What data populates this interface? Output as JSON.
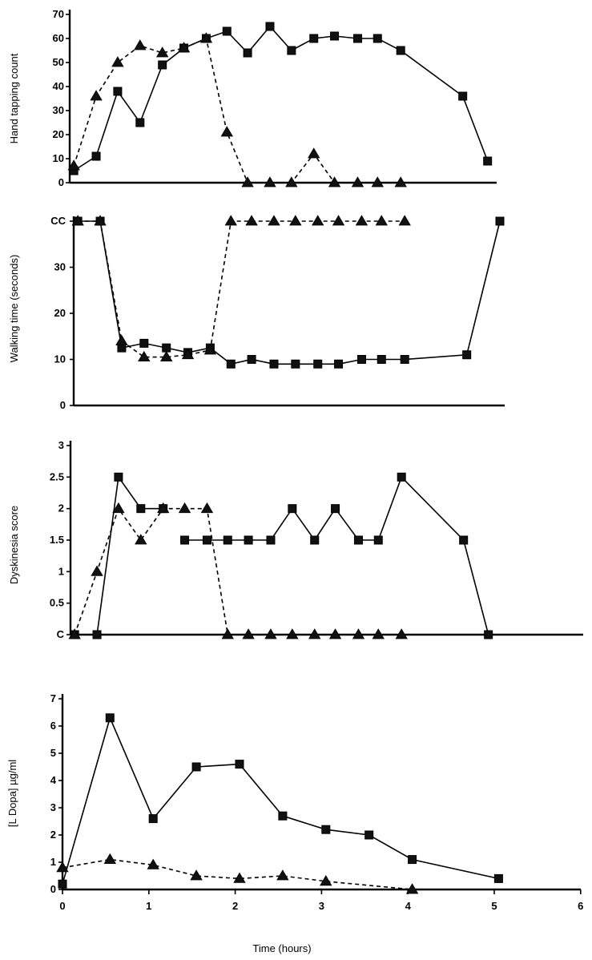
{
  "chart_data": [
    {
      "type": "line",
      "ylabel": "Hand tapping count",
      "ylim": [
        0,
        70
      ],
      "yticks": [
        "0",
        "10",
        "20",
        "30",
        "40",
        "50",
        "60",
        "70"
      ],
      "series": [
        {
          "marker": "square",
          "line": "solid",
          "x": [
            0.05,
            0.32,
            0.58,
            0.85,
            1.12,
            1.38,
            1.65,
            1.9,
            2.15,
            2.42,
            2.68,
            2.95,
            3.2,
            3.48,
            3.72,
            4.0,
            4.75,
            5.05
          ],
          "y": [
            5,
            11,
            38,
            25,
            49,
            56,
            60,
            63,
            54,
            65,
            55,
            60,
            61,
            60,
            60,
            55,
            36,
            9
          ]
        },
        {
          "marker": "triangle",
          "line": "dashed",
          "x": [
            0.05,
            0.32,
            0.58,
            0.85,
            1.12,
            1.38,
            1.65,
            1.9,
            2.15,
            2.42,
            2.68,
            2.95,
            3.2,
            3.48,
            3.72,
            4.0
          ],
          "y": [
            7,
            36,
            50,
            57,
            54,
            56,
            60,
            21,
            0,
            0,
            0,
            12,
            0,
            0,
            0,
            0
          ]
        }
      ]
    },
    {
      "type": "line",
      "ylabel": "Walking time (seconds)",
      "ylim": [
        0,
        40
      ],
      "yticks": [
        "0",
        "10",
        "20",
        "30",
        "CC"
      ],
      "series": [
        {
          "marker": "square",
          "line": "solid",
          "x": [
            0.05,
            0.32,
            0.58,
            0.85,
            1.12,
            1.38,
            1.65,
            1.9,
            2.15,
            2.42,
            2.68,
            2.95,
            3.2,
            3.48,
            3.72,
            4.0,
            4.75,
            5.15
          ],
          "y": [
            40,
            40,
            12.5,
            13.5,
            12.5,
            11.5,
            12.5,
            9,
            10,
            9,
            9,
            9,
            9,
            10,
            10,
            10,
            11,
            40
          ]
        },
        {
          "marker": "triangle",
          "line": "dashed",
          "x": [
            0.05,
            0.32,
            0.58,
            0.85,
            1.12,
            1.38,
            1.65,
            1.9,
            2.15,
            2.42,
            2.68,
            2.95,
            3.2,
            3.48,
            3.72,
            4.0
          ],
          "y": [
            40,
            40,
            14,
            10.5,
            10.5,
            11,
            12,
            40,
            40,
            40,
            40,
            40,
            40,
            40,
            40,
            40
          ]
        }
      ]
    },
    {
      "type": "line",
      "ylabel": "Dyskinesia score",
      "ylim": [
        0,
        3
      ],
      "yticks": [
        "C",
        "0.5",
        "1",
        "1.5",
        "2",
        "2.5",
        "3"
      ],
      "series": [
        {
          "marker": "square",
          "line": "solid",
          "x": [
            0.05,
            0.32,
            0.58,
            0.85,
            1.12,
            1.38,
            1.65,
            1.9,
            2.15,
            2.42,
            2.68,
            2.95,
            3.2,
            3.48,
            3.72,
            4.0,
            4.75,
            5.05
          ],
          "y": [
            0,
            0,
            2.5,
            2,
            2,
            1.5,
            1.5,
            1.5,
            1.5,
            1.5,
            2,
            1.5,
            2,
            1.5,
            1.5,
            2.5,
            1.5,
            0
          ],
          "gap_after_index": 4
        },
        {
          "marker": "triangle",
          "line": "dashed",
          "x": [
            0.05,
            0.32,
            0.58,
            0.85,
            1.12,
            1.38,
            1.65,
            1.9,
            2.15,
            2.42,
            2.68,
            2.95,
            3.2,
            3.48,
            3.72,
            4.0
          ],
          "y": [
            0,
            1,
            2,
            1.5,
            2,
            2,
            2,
            0,
            0,
            0,
            0,
            0,
            0,
            0,
            0,
            0
          ]
        }
      ]
    },
    {
      "type": "line",
      "ylabel": "[L Dopa] µg/ml",
      "xlabel": "Time (hours)",
      "ylim": [
        0,
        7
      ],
      "xlim": [
        0,
        6
      ],
      "yticks": [
        "0",
        "1",
        "2",
        "3",
        "4",
        "5",
        "6",
        "7"
      ],
      "xticks": [
        "0",
        "1",
        "2",
        "3",
        "4",
        "5",
        "6"
      ],
      "series": [
        {
          "marker": "square",
          "line": "solid",
          "x": [
            0,
            0.55,
            1.05,
            1.55,
            2.05,
            2.55,
            3.05,
            3.55,
            4.05,
            5.05
          ],
          "y": [
            0.2,
            6.3,
            2.6,
            4.5,
            4.6,
            2.7,
            2.2,
            2.0,
            1.1,
            0.4
          ]
        },
        {
          "marker": "triangle",
          "line": "dashed",
          "x": [
            0,
            0.55,
            1.05,
            1.55,
            2.05,
            2.55,
            3.05,
            4.05
          ],
          "y": [
            0.8,
            1.1,
            0.9,
            0.5,
            0.4,
            0.5,
            0.3,
            0
          ]
        }
      ]
    }
  ]
}
